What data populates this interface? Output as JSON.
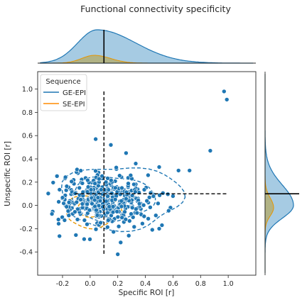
{
  "chart_data": {
    "type": "scatter",
    "title": "Functional connectivity specificity",
    "xlabel": "Specific ROI [r]",
    "ylabel": "Unspecific ROI [r]",
    "xlim": [
      -0.38,
      1.2
    ],
    "ylim": [
      -0.6,
      1.15
    ],
    "xticks": [
      -0.2,
      0.0,
      0.2,
      0.4,
      0.6,
      0.8,
      1.0
    ],
    "yticks": [
      -0.4,
      -0.2,
      0.0,
      0.2,
      0.4,
      0.6,
      0.8,
      1.0
    ],
    "grid": false,
    "legend": {
      "title": "Sequence",
      "placement": "top-left",
      "entries": [
        {
          "label": "GE-EPI",
          "color": "#1f77b4"
        },
        {
          "label": "SE-EPI",
          "color": "#ff8c00"
        }
      ]
    },
    "colors": {
      "ge": "#1f77b4",
      "ge_fill": "#a6cbe3",
      "se": "#e69500",
      "se_fill": "#b2b07a",
      "point": "#1f77b4",
      "guide": "#000000"
    },
    "series": [
      {
        "name": "GE-EPI",
        "highlight_points": [
          [
            0.97,
            0.98
          ],
          [
            0.99,
            0.91
          ],
          [
            0.87,
            0.47
          ],
          [
            0.04,
            0.57
          ],
          [
            0.15,
            0.52
          ],
          [
            0.64,
            0.3
          ],
          [
            0.72,
            0.3
          ],
          [
            0.5,
            0.33
          ],
          [
            0.2,
            -0.42
          ],
          [
            0.45,
            -0.21
          ],
          [
            0.5,
            -0.2
          ],
          [
            0.52,
            -0.17
          ],
          [
            0.28,
            -0.26
          ],
          [
            0.33,
            0.36
          ],
          [
            0.26,
            0.45
          ],
          [
            0.42,
            0.26
          ],
          [
            0.6,
            0.08
          ]
        ],
        "cluster": {
          "center": [
            0.1,
            0.05
          ],
          "sd": [
            0.17,
            0.11
          ],
          "n": 400
        }
      },
      {
        "name": "SE-EPI",
        "cluster": {
          "center": [
            0.02,
            -0.02
          ],
          "sd": [
            0.08,
            0.06
          ],
          "n": 60
        }
      }
    ],
    "reference_lines": {
      "x": 0.1,
      "y": 0.1
    },
    "marginals": {
      "x_ge_peak": 0.05,
      "x_se_peak": 0.03,
      "y_ge_peak": 0.0,
      "y_se_peak": -0.02
    }
  }
}
